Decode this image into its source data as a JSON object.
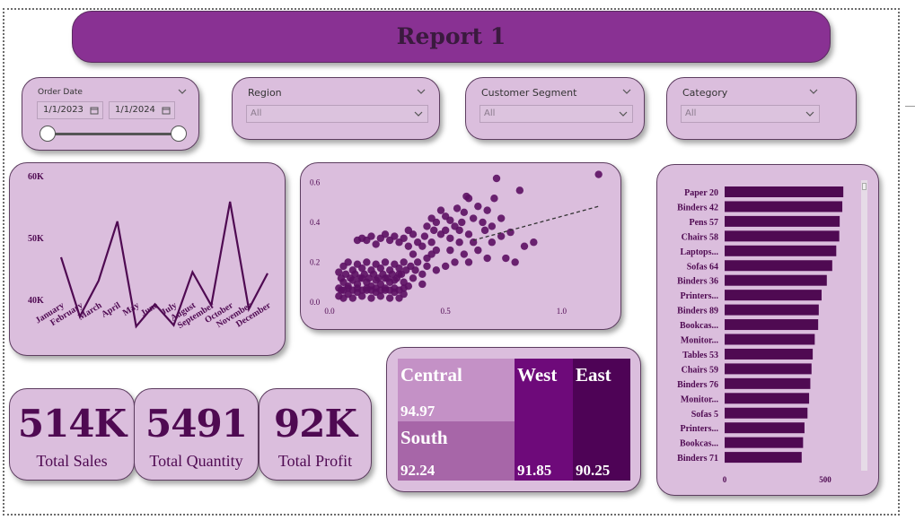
{
  "header": {
    "title": "Report 1"
  },
  "slicers": {
    "order_date": {
      "label": "Order Date",
      "start": "1/1/2023",
      "end": "1/1/2024"
    },
    "region": {
      "label": "Region",
      "value": "All"
    },
    "segment": {
      "label": "Customer Segment",
      "value": "All"
    },
    "category": {
      "label": "Category",
      "value": "All"
    }
  },
  "kpis": [
    {
      "value": "514K",
      "label": "Total Sales"
    },
    {
      "value": "5491",
      "label": "Total Quantity"
    },
    {
      "value": "92K",
      "label": "Total Profit"
    }
  ],
  "colors": {
    "accent": "#893193",
    "line": "#4f0a52",
    "card": "#dbbedd",
    "point": "#5c0f63"
  },
  "chart_data": [
    {
      "type": "line",
      "categories": [
        "January",
        "February",
        "March",
        "April",
        "May",
        "June",
        "July",
        "August",
        "September",
        "October",
        "November",
        "December"
      ],
      "values": [
        46800,
        37200,
        43000,
        52600,
        35600,
        39200,
        35800,
        44400,
        39000,
        55800,
        38400,
        44200
      ],
      "ylim": [
        33000,
        60000
      ],
      "yticks": [
        "40K",
        "50K",
        "60K"
      ],
      "ytick_values": [
        40000,
        50000,
        60000
      ]
    },
    {
      "type": "scatter",
      "xlim": [
        0,
        1.2
      ],
      "ylim": [
        0,
        0.62
      ],
      "xticks": [
        "0.0",
        "0.5",
        "1.0"
      ],
      "yticks": [
        "0.0",
        "0.2",
        "0.4",
        "0.6"
      ],
      "trendline": {
        "style": "dashed",
        "from": [
          0.62,
          0.31
        ],
        "to": [
          1.16,
          0.48
        ]
      },
      "points": [
        [
          1.16,
          0.64
        ],
        [
          0.72,
          0.62
        ],
        [
          0.59,
          0.53
        ],
        [
          0.82,
          0.56
        ],
        [
          0.6,
          0.52
        ],
        [
          0.71,
          0.52
        ],
        [
          0.55,
          0.47
        ],
        [
          0.64,
          0.48
        ],
        [
          0.58,
          0.45
        ],
        [
          0.5,
          0.43
        ],
        [
          0.52,
          0.41
        ],
        [
          0.48,
          0.46
        ],
        [
          0.46,
          0.4
        ],
        [
          0.44,
          0.42
        ],
        [
          0.54,
          0.38
        ],
        [
          0.5,
          0.36
        ],
        [
          0.6,
          0.34
        ],
        [
          0.67,
          0.36
        ],
        [
          0.78,
          0.35
        ],
        [
          0.74,
          0.33
        ],
        [
          0.7,
          0.3
        ],
        [
          0.62,
          0.3
        ],
        [
          0.56,
          0.3
        ],
        [
          0.52,
          0.32
        ],
        [
          0.48,
          0.34
        ],
        [
          0.45,
          0.36
        ],
        [
          0.42,
          0.38
        ],
        [
          0.41,
          0.33
        ],
        [
          0.44,
          0.3
        ],
        [
          0.46,
          0.26
        ],
        [
          0.4,
          0.28
        ],
        [
          0.38,
          0.3
        ],
        [
          0.36,
          0.34
        ],
        [
          0.34,
          0.36
        ],
        [
          0.32,
          0.32
        ],
        [
          0.3,
          0.3
        ],
        [
          0.28,
          0.33
        ],
        [
          0.26,
          0.31
        ],
        [
          0.24,
          0.34
        ],
        [
          0.22,
          0.32
        ],
        [
          0.18,
          0.33
        ],
        [
          0.16,
          0.31
        ],
        [
          0.14,
          0.32
        ],
        [
          0.12,
          0.31
        ],
        [
          0.2,
          0.29
        ],
        [
          0.34,
          0.28
        ],
        [
          0.52,
          0.26
        ],
        [
          0.58,
          0.24
        ],
        [
          0.64,
          0.26
        ],
        [
          0.8,
          0.2
        ],
        [
          0.76,
          0.22
        ],
        [
          0.68,
          0.22
        ],
        [
          0.6,
          0.2
        ],
        [
          0.54,
          0.2
        ],
        [
          0.5,
          0.18
        ],
        [
          0.46,
          0.16
        ],
        [
          0.42,
          0.18
        ],
        [
          0.4,
          0.14
        ],
        [
          0.38,
          0.2
        ],
        [
          0.4,
          0.09
        ],
        [
          0.36,
          0.12
        ],
        [
          0.34,
          0.08
        ],
        [
          0.32,
          0.1
        ],
        [
          0.3,
          0.14
        ],
        [
          0.28,
          0.11
        ],
        [
          0.26,
          0.1
        ],
        [
          0.24,
          0.12
        ],
        [
          0.22,
          0.09
        ],
        [
          0.2,
          0.11
        ],
        [
          0.18,
          0.08
        ],
        [
          0.16,
          0.1
        ],
        [
          0.14,
          0.12
        ],
        [
          0.12,
          0.09
        ],
        [
          0.1,
          0.11
        ],
        [
          0.08,
          0.08
        ],
        [
          0.06,
          0.1
        ],
        [
          0.05,
          0.06
        ],
        [
          0.04,
          0.03
        ],
        [
          0.06,
          0.02
        ],
        [
          0.08,
          0.04
        ],
        [
          0.1,
          0.02
        ],
        [
          0.12,
          0.05
        ],
        [
          0.14,
          0.03
        ],
        [
          0.16,
          0.06
        ],
        [
          0.18,
          0.02
        ],
        [
          0.2,
          0.05
        ],
        [
          0.22,
          0.03
        ],
        [
          0.24,
          0.06
        ],
        [
          0.26,
          0.02
        ],
        [
          0.28,
          0.05
        ],
        [
          0.3,
          0.02
        ],
        [
          0.32,
          0.04
        ],
        [
          0.04,
          0.15
        ],
        [
          0.06,
          0.18
        ],
        [
          0.08,
          0.2
        ],
        [
          0.1,
          0.16
        ],
        [
          0.12,
          0.19
        ],
        [
          0.14,
          0.17
        ],
        [
          0.16,
          0.2
        ],
        [
          0.18,
          0.16
        ],
        [
          0.2,
          0.19
        ],
        [
          0.22,
          0.17
        ],
        [
          0.24,
          0.2
        ],
        [
          0.26,
          0.16
        ],
        [
          0.28,
          0.19
        ],
        [
          0.3,
          0.17
        ],
        [
          0.32,
          0.2
        ],
        [
          0.05,
          0.12
        ],
        [
          0.07,
          0.14
        ],
        [
          0.09,
          0.12
        ],
        [
          0.11,
          0.14
        ],
        [
          0.13,
          0.12
        ],
        [
          0.15,
          0.14
        ],
        [
          0.17,
          0.12
        ],
        [
          0.19,
          0.14
        ],
        [
          0.21,
          0.12
        ],
        [
          0.23,
          0.14
        ],
        [
          0.25,
          0.12
        ],
        [
          0.27,
          0.14
        ],
        [
          0.29,
          0.12
        ],
        [
          0.31,
          0.14
        ],
        [
          0.33,
          0.16
        ],
        [
          0.35,
          0.18
        ],
        [
          0.37,
          0.16
        ],
        [
          0.04,
          0.07
        ],
        [
          0.06,
          0.06
        ],
        [
          0.08,
          0.07
        ],
        [
          0.1,
          0.06
        ],
        [
          0.12,
          0.07
        ],
        [
          0.14,
          0.06
        ],
        [
          0.16,
          0.07
        ],
        [
          0.18,
          0.06
        ],
        [
          0.2,
          0.07
        ],
        [
          0.22,
          0.06
        ],
        [
          0.24,
          0.07
        ],
        [
          0.26,
          0.06
        ],
        [
          0.28,
          0.07
        ],
        [
          0.3,
          0.06
        ],
        [
          0.32,
          0.07
        ],
        [
          0.42,
          0.22
        ],
        [
          0.44,
          0.24
        ],
        [
          0.36,
          0.24
        ],
        [
          0.56,
          0.36
        ],
        [
          0.66,
          0.4
        ],
        [
          0.7,
          0.38
        ],
        [
          0.62,
          0.42
        ],
        [
          0.88,
          0.3
        ],
        [
          0.84,
          0.28
        ],
        [
          0.74,
          0.42
        ],
        [
          0.68,
          0.46
        ],
        [
          0.57,
          0.4
        ]
      ]
    },
    {
      "type": "bar",
      "orientation": "horizontal",
      "categories": [
        "Paper 20",
        "Binders 42",
        "Pens 57",
        "Chairs 58",
        "Laptops...",
        "Sofas 64",
        "Binders 36",
        "Printers...",
        "Binders 89",
        "Bookcas...",
        "Monitor...",
        "Tables 53",
        "Chairs 59",
        "Binders 76",
        "Monitor...",
        "Sofas 5",
        "Printers...",
        "Bookcas...",
        "Binders 71"
      ],
      "values": [
        590,
        585,
        572,
        570,
        555,
        535,
        508,
        482,
        468,
        465,
        448,
        438,
        432,
        426,
        420,
        412,
        397,
        390,
        383
      ],
      "xlim": [
        0,
        800
      ],
      "xticks": [
        "0",
        "500"
      ],
      "xtick_values": [
        0,
        500
      ]
    },
    {
      "type": "treemap",
      "categories": [
        "Central",
        "South",
        "West",
        "East"
      ],
      "values": [
        94.97,
        92.24,
        91.85,
        90.25
      ],
      "labels": [
        "94.97",
        "92.24",
        "91.85",
        "90.25"
      ],
      "colors": [
        "#c491c6",
        "#a766a8",
        "#6e0a7a",
        "#4e0356"
      ]
    }
  ]
}
